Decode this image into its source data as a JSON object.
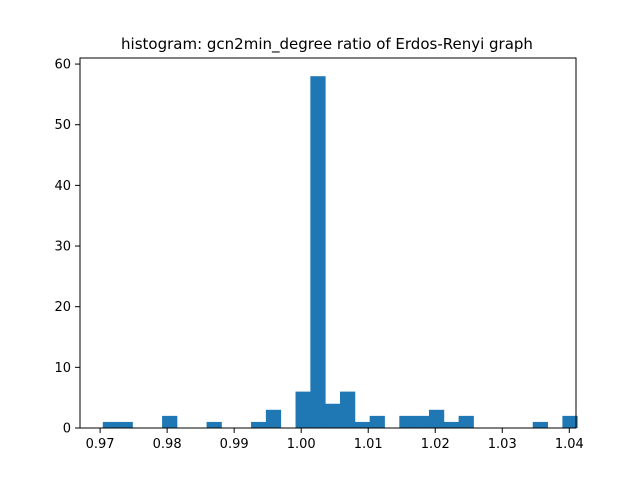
{
  "chart_data": {
    "type": "bar",
    "title": "histogram: gcn2min_degree ratio of Erdos-Renyi graph",
    "xlabel": "",
    "ylabel": "",
    "xlim": [
      0.967,
      1.041
    ],
    "ylim": [
      0,
      61
    ],
    "bar_color": "#1f77b4",
    "grid": false,
    "legend": "none",
    "x_ticks": [
      {
        "value": 0.97,
        "label": "0.97"
      },
      {
        "value": 0.98,
        "label": "0.98"
      },
      {
        "value": 0.99,
        "label": "0.99"
      },
      {
        "value": 1.0,
        "label": "1.00"
      },
      {
        "value": 1.01,
        "label": "1.01"
      },
      {
        "value": 1.02,
        "label": "1.02"
      },
      {
        "value": 1.03,
        "label": "1.03"
      },
      {
        "value": 1.04,
        "label": "1.04"
      }
    ],
    "y_ticks": [
      {
        "value": 0,
        "label": "0"
      },
      {
        "value": 10,
        "label": "10"
      },
      {
        "value": 20,
        "label": "20"
      },
      {
        "value": 30,
        "label": "30"
      },
      {
        "value": 40,
        "label": "40"
      },
      {
        "value": 50,
        "label": "50"
      },
      {
        "value": 60,
        "label": "60"
      }
    ],
    "bin_start": 0.9704,
    "bin_width": 0.002212,
    "counts": [
      1,
      1,
      0,
      0,
      2,
      0,
      0,
      1,
      0,
      0,
      1,
      3,
      0,
      6,
      58,
      4,
      6,
      1,
      2,
      0,
      2,
      2,
      3,
      1,
      2,
      0,
      0,
      0,
      0,
      1,
      0,
      2
    ]
  }
}
